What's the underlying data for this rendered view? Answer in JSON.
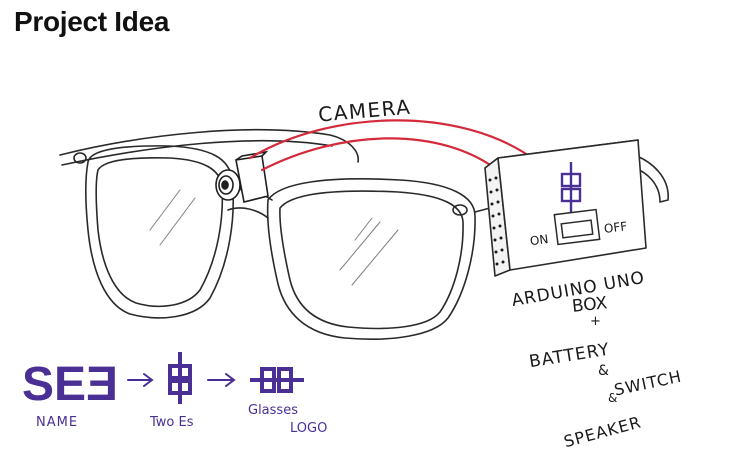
{
  "title": "Project Idea",
  "labels": {
    "camera": "CAMERA",
    "switch_on": "ON",
    "switch_off": "OFF",
    "box_line1": "ARDUINO UNO",
    "box_line2": "BOX",
    "plus": "+",
    "battery": "BATTERY",
    "amp1": "&",
    "switch": "SWITCH",
    "amp2": "&",
    "speaker": "SPEAKER"
  },
  "logo_sequence": {
    "logo_text": "SEƎ",
    "name_caption": "NAME",
    "two_es_caption": "Two Es",
    "glasses_caption_line1": "Glasses",
    "glasses_caption_line2": "LOGO"
  },
  "colors": {
    "brand_purple": "#4a2f94",
    "wire_red": "#d42a3c",
    "sketch_ink": "#2a2a2a"
  }
}
